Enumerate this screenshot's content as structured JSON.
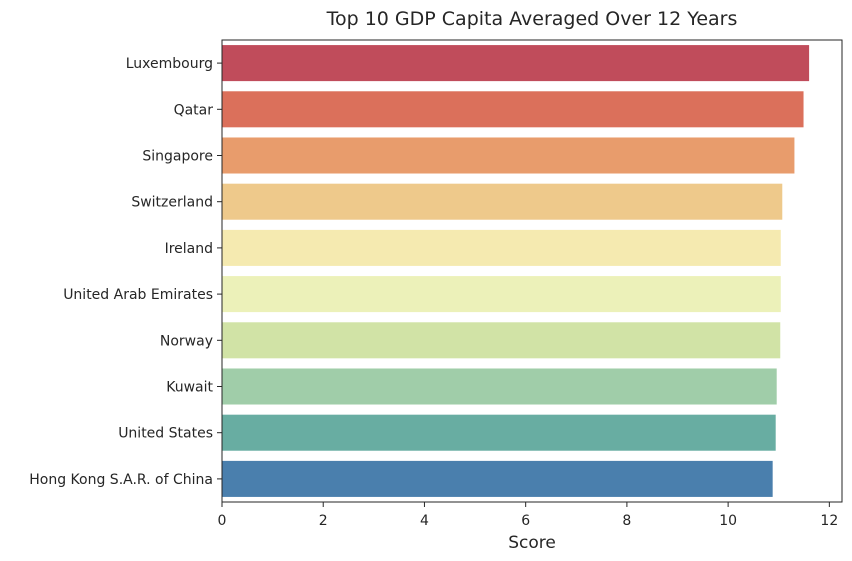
{
  "chart_data": {
    "type": "bar",
    "orientation": "horizontal",
    "title": "Top 10 GDP Capita Averaged Over 12 Years",
    "xlabel": "Score",
    "ylabel": "",
    "xlim": [
      0,
      12.25
    ],
    "xticks": [
      0,
      2,
      4,
      6,
      8,
      10,
      12
    ],
    "grid": false,
    "categories": [
      "Luxembourg",
      "Qatar",
      "Singapore",
      "Switzerland",
      "Ireland",
      "United Arab Emirates",
      "Norway",
      "Kuwait",
      "United States",
      "Hong Kong S.A.R. of China"
    ],
    "values": [
      11.6,
      11.49,
      11.31,
      11.07,
      11.04,
      11.04,
      11.03,
      10.96,
      10.94,
      10.88
    ],
    "colors": [
      "#c04c5b",
      "#db705b",
      "#e89c6c",
      "#eec98b",
      "#f5eab0",
      "#ecf1b9",
      "#d1e3a6",
      "#a0cda9",
      "#68ada2",
      "#4a7fad"
    ]
  }
}
